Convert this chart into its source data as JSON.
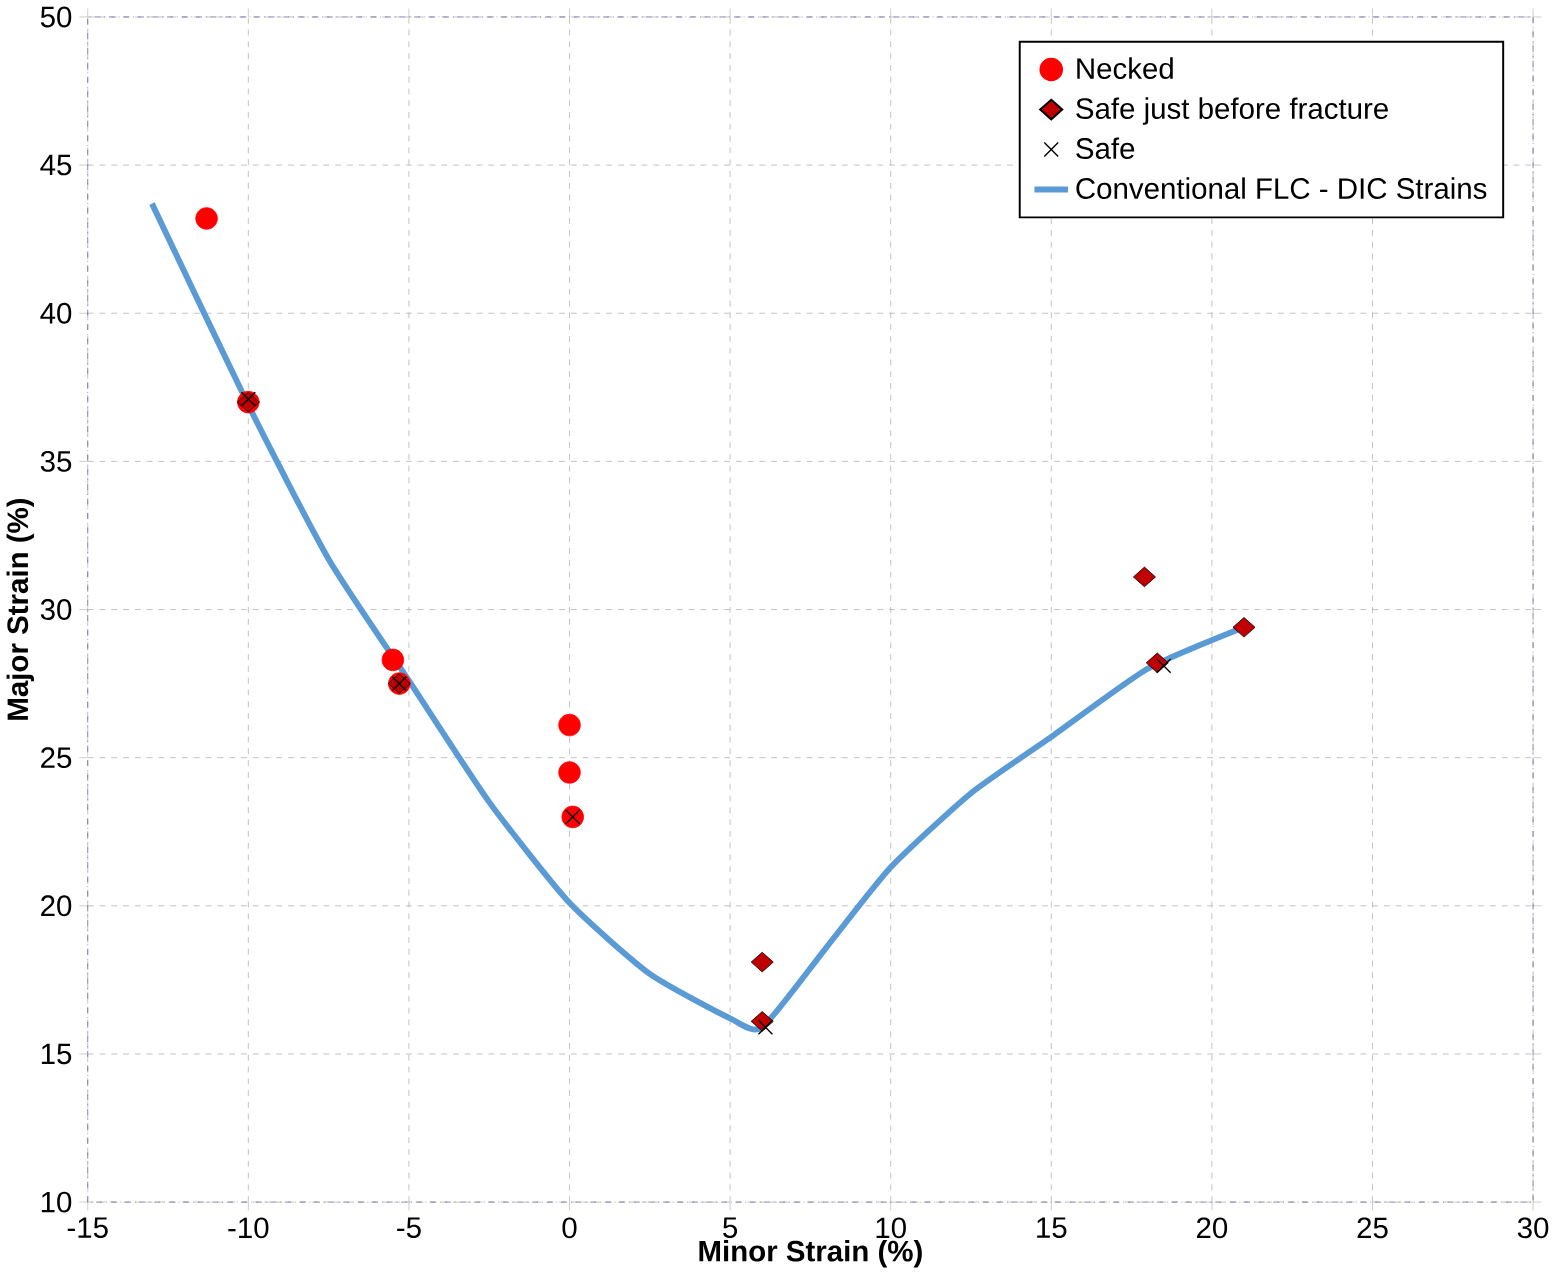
{
  "chart_data": {
    "type": "scatter",
    "xlabel": "Minor Strain (%)",
    "ylabel": "Major Strain (%)",
    "xlim": [
      -15,
      30
    ],
    "ylim": [
      10,
      50
    ],
    "xticks": [
      -15,
      -10,
      -5,
      0,
      5,
      10,
      15,
      20,
      25,
      30
    ],
    "yticks": [
      10,
      15,
      20,
      25,
      30,
      35,
      40,
      45,
      50
    ],
    "grid": true,
    "legend": "top right",
    "series": [
      {
        "name": "Necked",
        "marker": "circle",
        "color": "#ff0000",
        "x": [
          -11.3,
          -10,
          -5.5,
          -5.3,
          0,
          0,
          0.1
        ],
        "values": [
          43.2,
          37,
          28.3,
          27.5,
          26.1,
          24.5,
          23.0
        ]
      },
      {
        "name": "Safe just before fracture",
        "marker": "diamond",
        "color": "#c00000",
        "x": [
          -10,
          -5.3,
          6,
          6,
          17.9,
          18.3,
          21
        ],
        "values": [
          37,
          27.5,
          18.1,
          16.1,
          31.1,
          28.2,
          29.4
        ]
      },
      {
        "name": "Safe",
        "marker": "cross",
        "color": "#000000",
        "x": [
          -10,
          -5.3,
          0.1,
          6.1,
          18.5
        ],
        "values": [
          37.1,
          27.5,
          23.0,
          15.9,
          28.1
        ]
      },
      {
        "name": "Conventional FLC - DIC Strains",
        "type": "line",
        "marker": "none",
        "line_style": "solid",
        "color": "#5b9bd5",
        "x": [
          -13,
          -10,
          -7.5,
          -5,
          -2.5,
          0,
          2.5,
          5,
          6,
          8,
          10,
          12.5,
          15,
          18,
          21
        ],
        "values": [
          43.7,
          36.9,
          31.7,
          27.6,
          23.5,
          20.1,
          17.7,
          16.2,
          15.9,
          18.6,
          21.3,
          23.8,
          25.7,
          28,
          29.4
        ]
      }
    ]
  }
}
